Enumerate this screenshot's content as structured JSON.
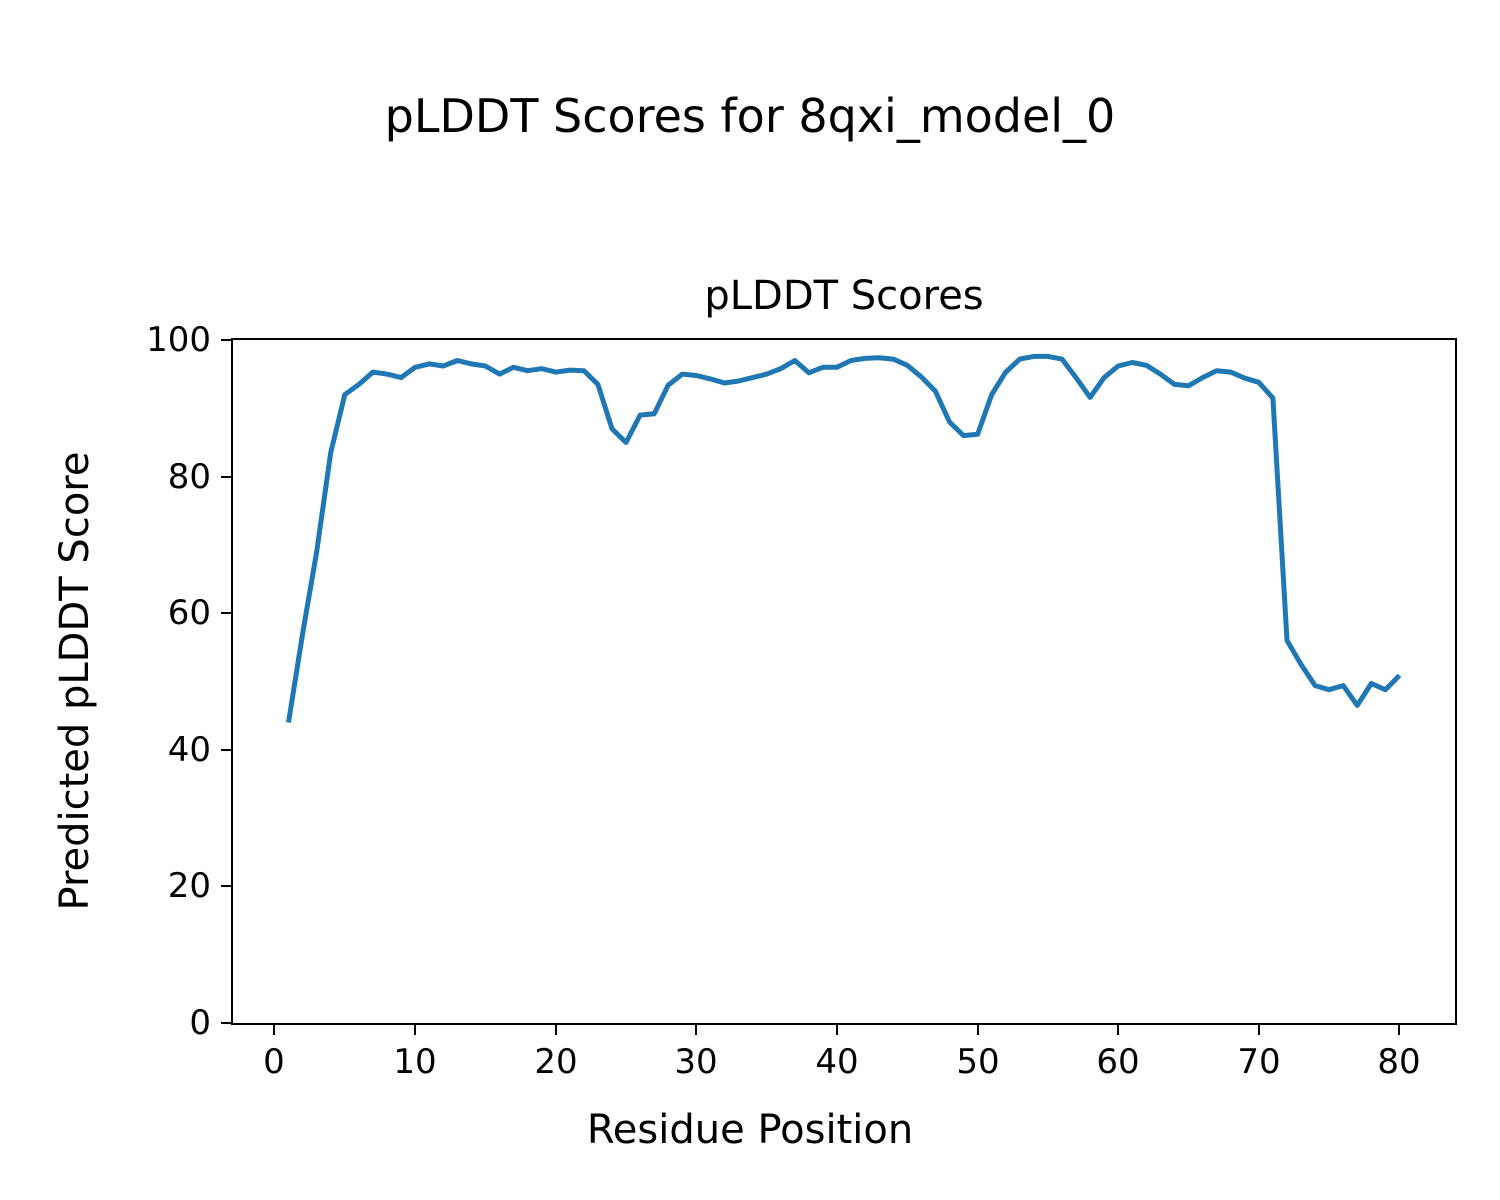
{
  "figure": {
    "suptitle": "pLDDT Scores for 8qxi_model_0",
    "background_color": "#ffffff",
    "text_color": "#000000"
  },
  "chart_data": {
    "type": "line",
    "title": "pLDDT Scores",
    "xlabel": "Residue Position",
    "ylabel": "Predicted pLDDT Score",
    "series_name": "pLDDT",
    "line_color": "#1f77b4",
    "line_width": 5,
    "grid": false,
    "legend": "none",
    "xlim": [
      -2.95,
      83.95
    ],
    "ylim": [
      0,
      100
    ],
    "xticks": [
      0,
      10,
      20,
      30,
      40,
      50,
      60,
      70,
      80
    ],
    "yticks": [
      0,
      20,
      40,
      60,
      80,
      100
    ],
    "x": [
      1,
      2,
      3,
      4,
      5,
      6,
      7,
      8,
      9,
      10,
      11,
      12,
      13,
      14,
      15,
      16,
      17,
      18,
      19,
      20,
      21,
      22,
      23,
      24,
      25,
      26,
      27,
      28,
      29,
      30,
      31,
      32,
      33,
      34,
      35,
      36,
      37,
      38,
      39,
      40,
      41,
      42,
      43,
      44,
      45,
      46,
      47,
      48,
      49,
      50,
      51,
      52,
      53,
      54,
      55,
      56,
      57,
      58,
      59,
      60,
      61,
      62,
      63,
      64,
      65,
      66,
      67,
      68,
      69,
      70,
      71,
      72,
      73,
      74,
      75,
      76,
      77,
      78,
      79,
      80
    ],
    "values": [
      44,
      57,
      69,
      83.5,
      92,
      93.5,
      95.3,
      95,
      94.5,
      96,
      96.5,
      96.2,
      97,
      96.5,
      96.2,
      95,
      96,
      95.5,
      95.8,
      95.3,
      95.6,
      95.5,
      93.5,
      87,
      85,
      89,
      89.2,
      93.4,
      95,
      94.8,
      94.3,
      93.7,
      94,
      94.5,
      95,
      95.8,
      97,
      95.2,
      96,
      96,
      97,
      97.3,
      97.4,
      97.2,
      96.3,
      94.6,
      92.5,
      88,
      86,
      86.2,
      92,
      95.3,
      97.2,
      97.6,
      97.6,
      97.2,
      94.5,
      91.6,
      94.5,
      96.2,
      96.7,
      96.3,
      95,
      93.5,
      93.3,
      94.5,
      95.5,
      95.3,
      94.4,
      93.8,
      91.5,
      56,
      52.5,
      49.4,
      48.8,
      49.4,
      46.5,
      49.7,
      48.8,
      50.9
    ]
  }
}
